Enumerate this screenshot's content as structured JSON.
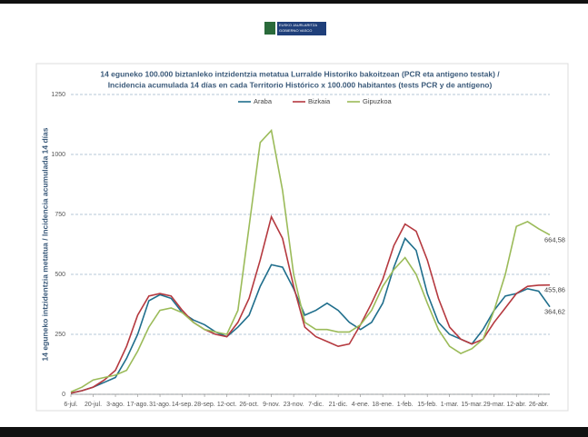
{
  "header": {
    "logo_line1": "EUSKO JAURLARITZA",
    "logo_line2": "GOBIERNO VASCO"
  },
  "chart_data": {
    "type": "line",
    "title": "14 eguneko 100.000 biztanleko intzidentzia metatua Lurralde Historiko bakoitzean (PCR eta antigeno  testak) /",
    "subtitle": "Incidencia acumulada  14 días en cada Territorio Histórico x 100.000 habitantes (tests PCR y de antígeno)",
    "y_label": "14 eguneko intzidentzia metatua / Incidencia acumulada 14 días",
    "categories": [
      "6-jul.",
      null,
      "20-jul.",
      null,
      "3-ago.",
      null,
      "17-ago.",
      null,
      "31-ago.",
      null,
      "14-sep.",
      null,
      "28-sep.",
      null,
      "12-oct.",
      null,
      "26-oct.",
      null,
      "9-nov.",
      null,
      "23-nov.",
      null,
      "7-dic.",
      null,
      "21-dic.",
      null,
      "4-ene.",
      null,
      "18-ene.",
      null,
      "1-feb.",
      null,
      "15-feb.",
      null,
      "1-mar.",
      null,
      "15-mar.",
      null,
      "29-mar.",
      null,
      "12-abr.",
      null,
      "26-abr.",
      null
    ],
    "series": [
      {
        "name": "Araba",
        "color": "#1f6e8c",
        "values": [
          5,
          15,
          30,
          50,
          70,
          150,
          250,
          390,
          415,
          400,
          340,
          310,
          290,
          260,
          240,
          280,
          330,
          450,
          540,
          530,
          440,
          330,
          350,
          380,
          350,
          300,
          270,
          300,
          380,
          530,
          650,
          600,
          420,
          300,
          250,
          230,
          210,
          270,
          350,
          410,
          420,
          440,
          430,
          364.62
        ],
        "value_labels": [
          null,
          null,
          null,
          null,
          null,
          null,
          null,
          null,
          null,
          null,
          null,
          null,
          null,
          null,
          null,
          null,
          null,
          null,
          null,
          null,
          null,
          null,
          null,
          null,
          null,
          null,
          null,
          null,
          null,
          null,
          null,
          null,
          null,
          null,
          null,
          null,
          null,
          null,
          null,
          null,
          null,
          null,
          null,
          "364,62"
        ]
      },
      {
        "name": "Bizkaia",
        "color": "#b5393f",
        "values": [
          5,
          15,
          30,
          60,
          100,
          200,
          330,
          410,
          420,
          410,
          350,
          300,
          270,
          250,
          240,
          300,
          400,
          560,
          740,
          650,
          450,
          280,
          240,
          220,
          200,
          210,
          290,
          380,
          480,
          620,
          710,
          680,
          560,
          400,
          280,
          230,
          210,
          230,
          300,
          360,
          420,
          450,
          455,
          455.86
        ],
        "value_labels": [
          null,
          null,
          null,
          null,
          null,
          null,
          null,
          null,
          null,
          null,
          null,
          null,
          null,
          null,
          null,
          null,
          null,
          null,
          null,
          null,
          null,
          null,
          null,
          null,
          null,
          null,
          null,
          null,
          null,
          null,
          null,
          null,
          null,
          null,
          null,
          null,
          null,
          null,
          null,
          null,
          null,
          null,
          null,
          "455,86"
        ]
      },
      {
        "name": "Gipuzkoa",
        "color": "#9bbb59",
        "values": [
          10,
          30,
          60,
          70,
          80,
          100,
          180,
          280,
          350,
          360,
          340,
          300,
          270,
          260,
          250,
          350,
          700,
          1050,
          1100,
          850,
          500,
          300,
          270,
          270,
          260,
          260,
          290,
          350,
          450,
          520,
          570,
          500,
          380,
          270,
          200,
          170,
          190,
          230,
          350,
          500,
          700,
          720,
          690,
          664.58
        ],
        "value_labels": [
          null,
          null,
          null,
          null,
          null,
          null,
          null,
          null,
          null,
          null,
          null,
          null,
          null,
          null,
          null,
          null,
          null,
          null,
          null,
          null,
          null,
          null,
          null,
          null,
          null,
          null,
          null,
          null,
          null,
          null,
          null,
          null,
          null,
          null,
          null,
          null,
          null,
          null,
          null,
          null,
          null,
          null,
          null,
          "664,58"
        ]
      }
    ],
    "ylim": [
      0,
      1250
    ],
    "yticks": [
      0,
      250,
      500,
      750,
      1000,
      1250
    ],
    "grid": true,
    "legend": "top"
  }
}
